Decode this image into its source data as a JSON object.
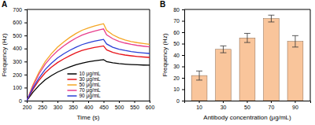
{
  "chart_data": [
    {
      "type": "line",
      "title": "A",
      "x_label": "Time (s)",
      "y_label": "Frequency (Hz)",
      "x": [
        200,
        220,
        240,
        260,
        280,
        300,
        320,
        340,
        360,
        380,
        400,
        420,
        440,
        450,
        460,
        480,
        500,
        520,
        540,
        560,
        580,
        600
      ],
      "series": [
        {
          "name": "10 μg/mL",
          "color": "#000000",
          "values": [
            0,
            64,
            117,
            160,
            192,
            219,
            240,
            259,
            275,
            288,
            298,
            306,
            312,
            315,
            300,
            290,
            284,
            280,
            277,
            275,
            273,
            272
          ]
        },
        {
          "name": "30 μg/mL",
          "color": "#e8141b",
          "values": [
            0,
            85,
            157,
            214,
            256,
            292,
            320,
            345,
            367,
            385,
            397,
            408,
            416,
            420,
            390,
            370,
            358,
            350,
            344,
            339,
            335,
            332
          ]
        },
        {
          "name": "50 μg/mL",
          "color": "#f5a623",
          "values": [
            0,
            120,
            220,
            300,
            360,
            410,
            450,
            485,
            515,
            540,
            558,
            573,
            585,
            590,
            540,
            505,
            482,
            466,
            454,
            445,
            438,
            432
          ]
        },
        {
          "name": "70 μg/mL",
          "color": "#e83e8c",
          "values": [
            0,
            112,
            205,
            280,
            336,
            382,
            420,
            452,
            480,
            503,
            520,
            534,
            545,
            550,
            505,
            475,
            455,
            442,
            432,
            424,
            418,
            413
          ]
        },
        {
          "name": "90 μg/mL",
          "color": "#2b3fd6",
          "values": [
            0,
            96,
            175,
            239,
            287,
            327,
            359,
            386,
            410,
            430,
            445,
            457,
            466,
            470,
            435,
            410,
            395,
            385,
            377,
            371,
            366,
            362
          ]
        }
      ],
      "xlim": [
        200,
        600
      ],
      "xticks": [
        200,
        250,
        300,
        350,
        400,
        450,
        500,
        550,
        600
      ],
      "ylim": [
        0,
        700
      ],
      "yticks": [
        0,
        100,
        200,
        300,
        400,
        500,
        600,
        700
      ],
      "legend": "bottom",
      "grid": false
    },
    {
      "type": "bar",
      "title": "B",
      "x_label": "Antibody concentration (μg/mL)",
      "y_label": "Frequency (Hz)",
      "categories": [
        "10",
        "30",
        "50",
        "70",
        "90"
      ],
      "values": [
        22,
        45,
        55,
        72,
        52
      ],
      "errors": [
        4,
        3,
        4,
        3,
        5
      ],
      "color": "#f9c59b",
      "ylim": [
        0,
        80
      ],
      "yticks": [
        0,
        10,
        20,
        30,
        40,
        50,
        60,
        70,
        80
      ],
      "grid": false
    }
  ]
}
